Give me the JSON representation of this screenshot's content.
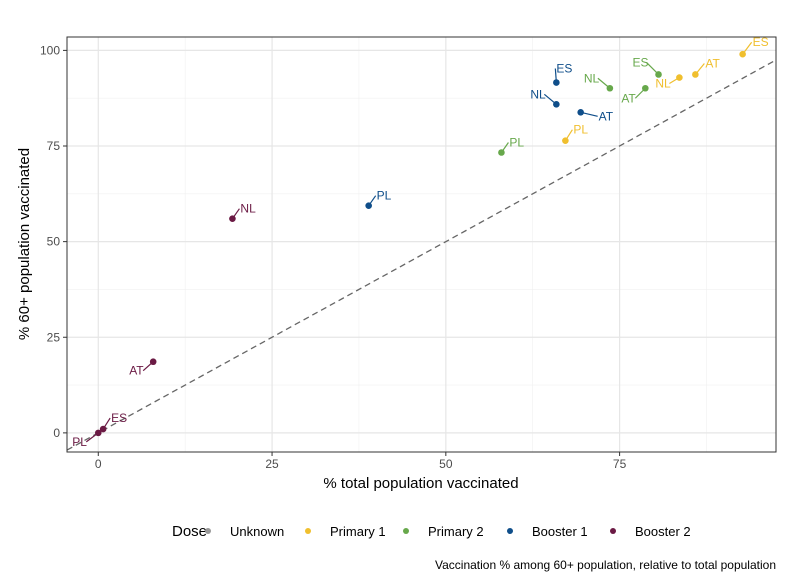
{
  "chart_data": {
    "type": "scatter",
    "xlabel": "% total population vaccinated",
    "ylabel": "% 60+ population vaccinated",
    "caption": "Vaccination % among 60+ population, relative to total population",
    "xlim": [
      -4.5,
      97.5
    ],
    "ylim": [
      -5,
      103.5
    ],
    "xticks": [
      0,
      25,
      50,
      75
    ],
    "yticks": [
      0,
      25,
      50,
      75,
      100
    ],
    "grid": true,
    "reference_line": {
      "type": "y = x",
      "style": "dashed",
      "color": "#666666"
    },
    "legend": {
      "title": "Dose",
      "placement": "bottom",
      "entries": [
        {
          "name": "Unknown",
          "color": "#999999"
        },
        {
          "name": "Primary 1",
          "color": "#f0bf2e"
        },
        {
          "name": "Primary 2",
          "color": "#67a84b"
        },
        {
          "name": "Booster 1",
          "color": "#0f4e8a"
        },
        {
          "name": "Booster 2",
          "color": "#6b1a44"
        }
      ]
    },
    "series": [
      {
        "name": "Primary 1",
        "points": [
          {
            "label": "ES",
            "x": 92.7,
            "y": 99.0
          },
          {
            "label": "AT",
            "x": 85.9,
            "y": 93.7
          },
          {
            "label": "NL",
            "x": 83.6,
            "y": 92.9
          },
          {
            "label": "PL",
            "x": 67.2,
            "y": 76.4
          }
        ]
      },
      {
        "name": "Primary 2",
        "points": [
          {
            "label": "ES",
            "x": 80.6,
            "y": 93.7
          },
          {
            "label": "NL",
            "x": 73.6,
            "y": 90.1
          },
          {
            "label": "AT",
            "x": 78.7,
            "y": 90.1
          },
          {
            "label": "PL",
            "x": 58.0,
            "y": 73.3
          }
        ]
      },
      {
        "name": "Booster 1",
        "points": [
          {
            "label": "ES",
            "x": 65.9,
            "y": 91.6
          },
          {
            "label": "NL",
            "x": 65.9,
            "y": 85.9
          },
          {
            "label": "AT",
            "x": 69.4,
            "y": 83.8
          },
          {
            "label": "PL",
            "x": 38.9,
            "y": 59.4
          }
        ]
      },
      {
        "name": "Booster 2",
        "points": [
          {
            "label": "NL",
            "x": 19.3,
            "y": 56.0
          },
          {
            "label": "AT",
            "x": 7.9,
            "y": 18.6
          },
          {
            "label": "ES",
            "x": 0.7,
            "y": 1.0
          },
          {
            "label": "PL",
            "x": 0.0,
            "y": 0.0
          }
        ]
      }
    ]
  }
}
